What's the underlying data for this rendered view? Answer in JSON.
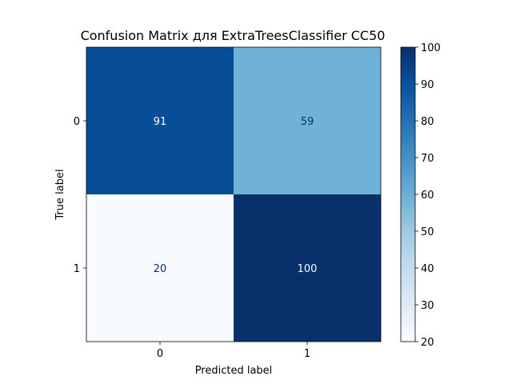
{
  "chart_data": {
    "type": "heatmap",
    "title": "Confusion Matrix для ExtraTreesClassifier CC50",
    "xlabel": "Predicted label",
    "ylabel": "True label",
    "x_categories": [
      "0",
      "1"
    ],
    "y_categories": [
      "0",
      "1"
    ],
    "matrix": [
      [
        91,
        59
      ],
      [
        20,
        100
      ]
    ],
    "colormap": "Blues",
    "colorbar": {
      "range": [
        20,
        100
      ],
      "ticks": [
        20,
        30,
        40,
        50,
        60,
        70,
        80,
        90,
        100
      ]
    },
    "cell_text_colors": {
      "dark": "#08306b",
      "light": "#ffffff"
    }
  }
}
